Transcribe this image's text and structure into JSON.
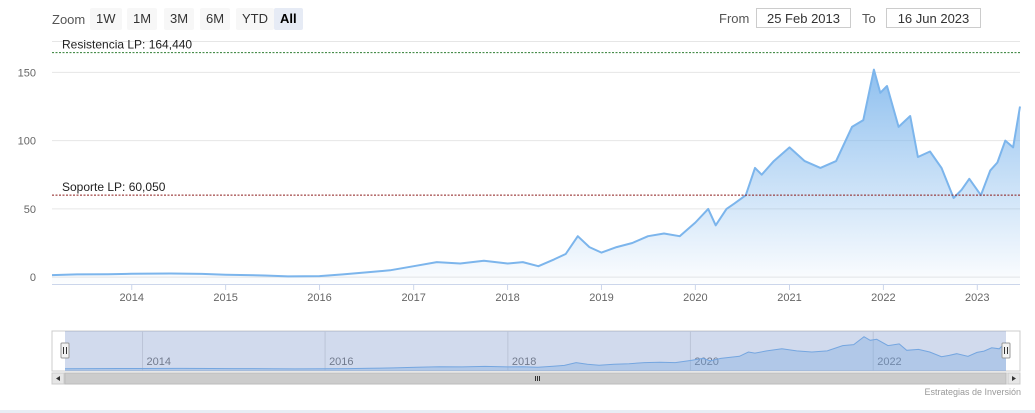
{
  "toolbar": {
    "zoom_label": "Zoom",
    "zoom_buttons": [
      "1W",
      "1M",
      "3M",
      "6M",
      "YTD",
      "All"
    ],
    "active_zoom": "All",
    "from_label": "From",
    "from_value": "25 Feb 2013",
    "to_label": "To",
    "to_value": "16 Jun 2023"
  },
  "credit": "Estrategias de Inversión",
  "colors": {
    "series_line": "#7cb5ec",
    "resistance_line": "#2e7d32",
    "support_line": "#8b1a1a",
    "navigator_mask": "rgba(102,133,194,0.3)"
  },
  "chart_data": {
    "type": "area",
    "series": [
      {
        "points": [
          [
            "2013-02-25",
            1.5
          ],
          [
            "2013-06-01",
            2.0
          ],
          [
            "2013-10-01",
            2.2
          ],
          [
            "2014-01-01",
            2.5
          ],
          [
            "2014-06-01",
            2.7
          ],
          [
            "2014-10-01",
            2.4
          ],
          [
            "2015-01-01",
            1.8
          ],
          [
            "2015-06-01",
            1.2
          ],
          [
            "2015-09-01",
            0.6
          ],
          [
            "2016-01-01",
            0.8
          ],
          [
            "2016-04-01",
            2.0
          ],
          [
            "2016-07-01",
            3.5
          ],
          [
            "2016-10-01",
            5.0
          ],
          [
            "2017-01-01",
            8.0
          ],
          [
            "2017-04-01",
            11.0
          ],
          [
            "2017-07-01",
            10.0
          ],
          [
            "2017-10-01",
            12.0
          ],
          [
            "2018-01-01",
            10.0
          ],
          [
            "2018-03-01",
            11.0
          ],
          [
            "2018-05-01",
            8.0
          ],
          [
            "2018-07-01",
            13.0
          ],
          [
            "2018-08-15",
            17.0
          ],
          [
            "2018-10-01",
            30.0
          ],
          [
            "2018-11-15",
            22.0
          ],
          [
            "2019-01-01",
            18.0
          ],
          [
            "2019-03-01",
            22.0
          ],
          [
            "2019-05-01",
            25.0
          ],
          [
            "2019-07-01",
            30.0
          ],
          [
            "2019-09-01",
            32.0
          ],
          [
            "2019-11-01",
            30.0
          ],
          [
            "2020-01-01",
            40.0
          ],
          [
            "2020-02-20",
            50.0
          ],
          [
            "2020-03-20",
            38.0
          ],
          [
            "2020-05-01",
            50.0
          ],
          [
            "2020-06-01",
            54.0
          ],
          [
            "2020-07-15",
            60.0
          ],
          [
            "2020-08-20",
            80.0
          ],
          [
            "2020-09-15",
            75.0
          ],
          [
            "2020-11-01",
            85.0
          ],
          [
            "2021-01-01",
            95.0
          ],
          [
            "2021-03-01",
            85.0
          ],
          [
            "2021-05-01",
            80.0
          ],
          [
            "2021-07-01",
            85.0
          ],
          [
            "2021-09-01",
            110.0
          ],
          [
            "2021-10-15",
            115.0
          ],
          [
            "2021-11-25",
            152.0
          ],
          [
            "2021-12-20",
            135.0
          ],
          [
            "2022-01-15",
            140.0
          ],
          [
            "2022-03-01",
            110.0
          ],
          [
            "2022-04-15",
            118.0
          ],
          [
            "2022-05-15",
            88.0
          ],
          [
            "2022-07-01",
            92.0
          ],
          [
            "2022-08-15",
            80.0
          ],
          [
            "2022-10-01",
            58.0
          ],
          [
            "2022-11-01",
            64.0
          ],
          [
            "2022-12-01",
            72.0
          ],
          [
            "2023-01-15",
            60.0
          ],
          [
            "2023-02-20",
            78.0
          ],
          [
            "2023-03-20",
            84.0
          ],
          [
            "2023-04-20",
            100.0
          ],
          [
            "2023-05-20",
            95.0
          ],
          [
            "2023-06-16",
            125.0
          ]
        ]
      }
    ],
    "x_ticks": [
      "2014",
      "2015",
      "2016",
      "2017",
      "2018",
      "2019",
      "2020",
      "2021",
      "2022",
      "2023"
    ],
    "y_ticks": [
      0,
      50,
      100,
      150
    ],
    "ylim": [
      -5,
      170
    ],
    "xlim": [
      "2013-02-25",
      "2023-06-16"
    ],
    "grid": "horizontal",
    "plot_lines": [
      {
        "value": 164.44,
        "label": "Resistencia LP: 164,440",
        "style": "dashed"
      },
      {
        "value": 60.05,
        "label": "Soporte LP: 60,050",
        "style": "dashed"
      }
    ],
    "navigator": {
      "x_ticks": [
        "2014",
        "2016",
        "2018",
        "2020",
        "2022"
      ]
    }
  }
}
